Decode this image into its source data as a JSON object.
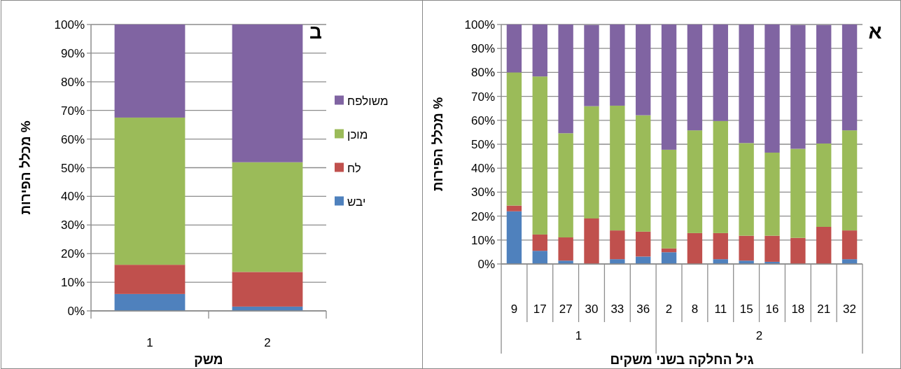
{
  "chart_data": [
    {
      "type": "bar",
      "stacked": true,
      "title": "א",
      "ylabel": "% מכלל הפירות",
      "xlabel": "גיל החלקה בשני משקים",
      "categories": [
        "9",
        "17",
        "27",
        "30",
        "33",
        "36",
        "2",
        "8",
        "11",
        "15",
        "16",
        "18",
        "21",
        "32"
      ],
      "annotations": [
        "1",
        "2"
      ],
      "series": [
        {
          "color": "#4f81bd",
          "values": [
            22.0,
            5.5,
            1.4,
            null,
            2.0,
            3.1,
            4.9,
            0,
            2.0,
            1.4,
            0.9,
            null,
            null,
            2.0
          ]
        },
        {
          "color": "#c0504d",
          "values": [
            2.4,
            6.8,
            9.7,
            19.0,
            12.0,
            10.4,
            1.6,
            12.9,
            10.9,
            10.4,
            10.9,
            10.9,
            15.5,
            12.0
          ]
        },
        {
          "color": "#9bbb59",
          "values": [
            55.6,
            66.0,
            43.5,
            46.9,
            52.1,
            48.6,
            41.2,
            42.9,
            46.8,
            38.7,
            34.7,
            37.2,
            34.8,
            41.8
          ]
        },
        {
          "color": "#8064a2",
          "values": [
            20.0,
            21.7,
            45.4,
            33.9,
            33.9,
            37.9,
            52.3,
            44.2,
            40.3,
            49.5,
            53.5,
            51.7,
            49.5,
            44.2
          ]
        }
      ],
      "ylim": [
        0,
        100
      ],
      "yticks": [
        {
          "value": 0,
          "label": "0%"
        },
        {
          "value": 10,
          "label": "10%"
        },
        {
          "value": 20,
          "label": "20%"
        },
        {
          "value": 30,
          "label": "30%"
        },
        {
          "value": 40,
          "label": "40%"
        },
        {
          "value": 50,
          "label": "50%"
        },
        {
          "value": 60,
          "label": "60%"
        },
        {
          "value": 70,
          "label": "70%"
        },
        {
          "value": 80,
          "label": "80%"
        },
        {
          "value": 90,
          "label": "90%"
        },
        {
          "value": 100,
          "label": "100%"
        }
      ],
      "grid": "y"
    },
    {
      "type": "bar",
      "stacked": true,
      "title": "ב",
      "ylabel": "% מכלל הפירות",
      "xlabel": "משק",
      "categories": [
        "1",
        "2"
      ],
      "series": [
        {
          "name": "יבש",
          "color": "#4f81bd",
          "values": [
            5.9,
            1.5
          ]
        },
        {
          "name": "לח",
          "color": "#c0504d",
          "values": [
            10.2,
            12.1
          ]
        },
        {
          "name": "מוכן",
          "color": "#9bbb59",
          "values": [
            51.4,
            38.3
          ]
        },
        {
          "name": "משולפח",
          "color": "#8064a2",
          "values": [
            32.5,
            48.1
          ]
        }
      ],
      "ylim": [
        0,
        100
      ],
      "yticks": [
        {
          "value": 0,
          "label": "0%"
        },
        {
          "value": 10,
          "label": "10%"
        },
        {
          "value": 20,
          "label": "20%"
        },
        {
          "value": 30,
          "label": "30%"
        },
        {
          "value": 40,
          "label": "40%"
        },
        {
          "value": 50,
          "label": "50%"
        },
        {
          "value": 60,
          "label": "60%"
        },
        {
          "value": 70,
          "label": "70%"
        },
        {
          "value": 80,
          "label": "80%"
        },
        {
          "value": 90,
          "label": "90%"
        },
        {
          "value": 100,
          "label": "100%"
        }
      ],
      "grid": "y",
      "legend": "right"
    }
  ]
}
